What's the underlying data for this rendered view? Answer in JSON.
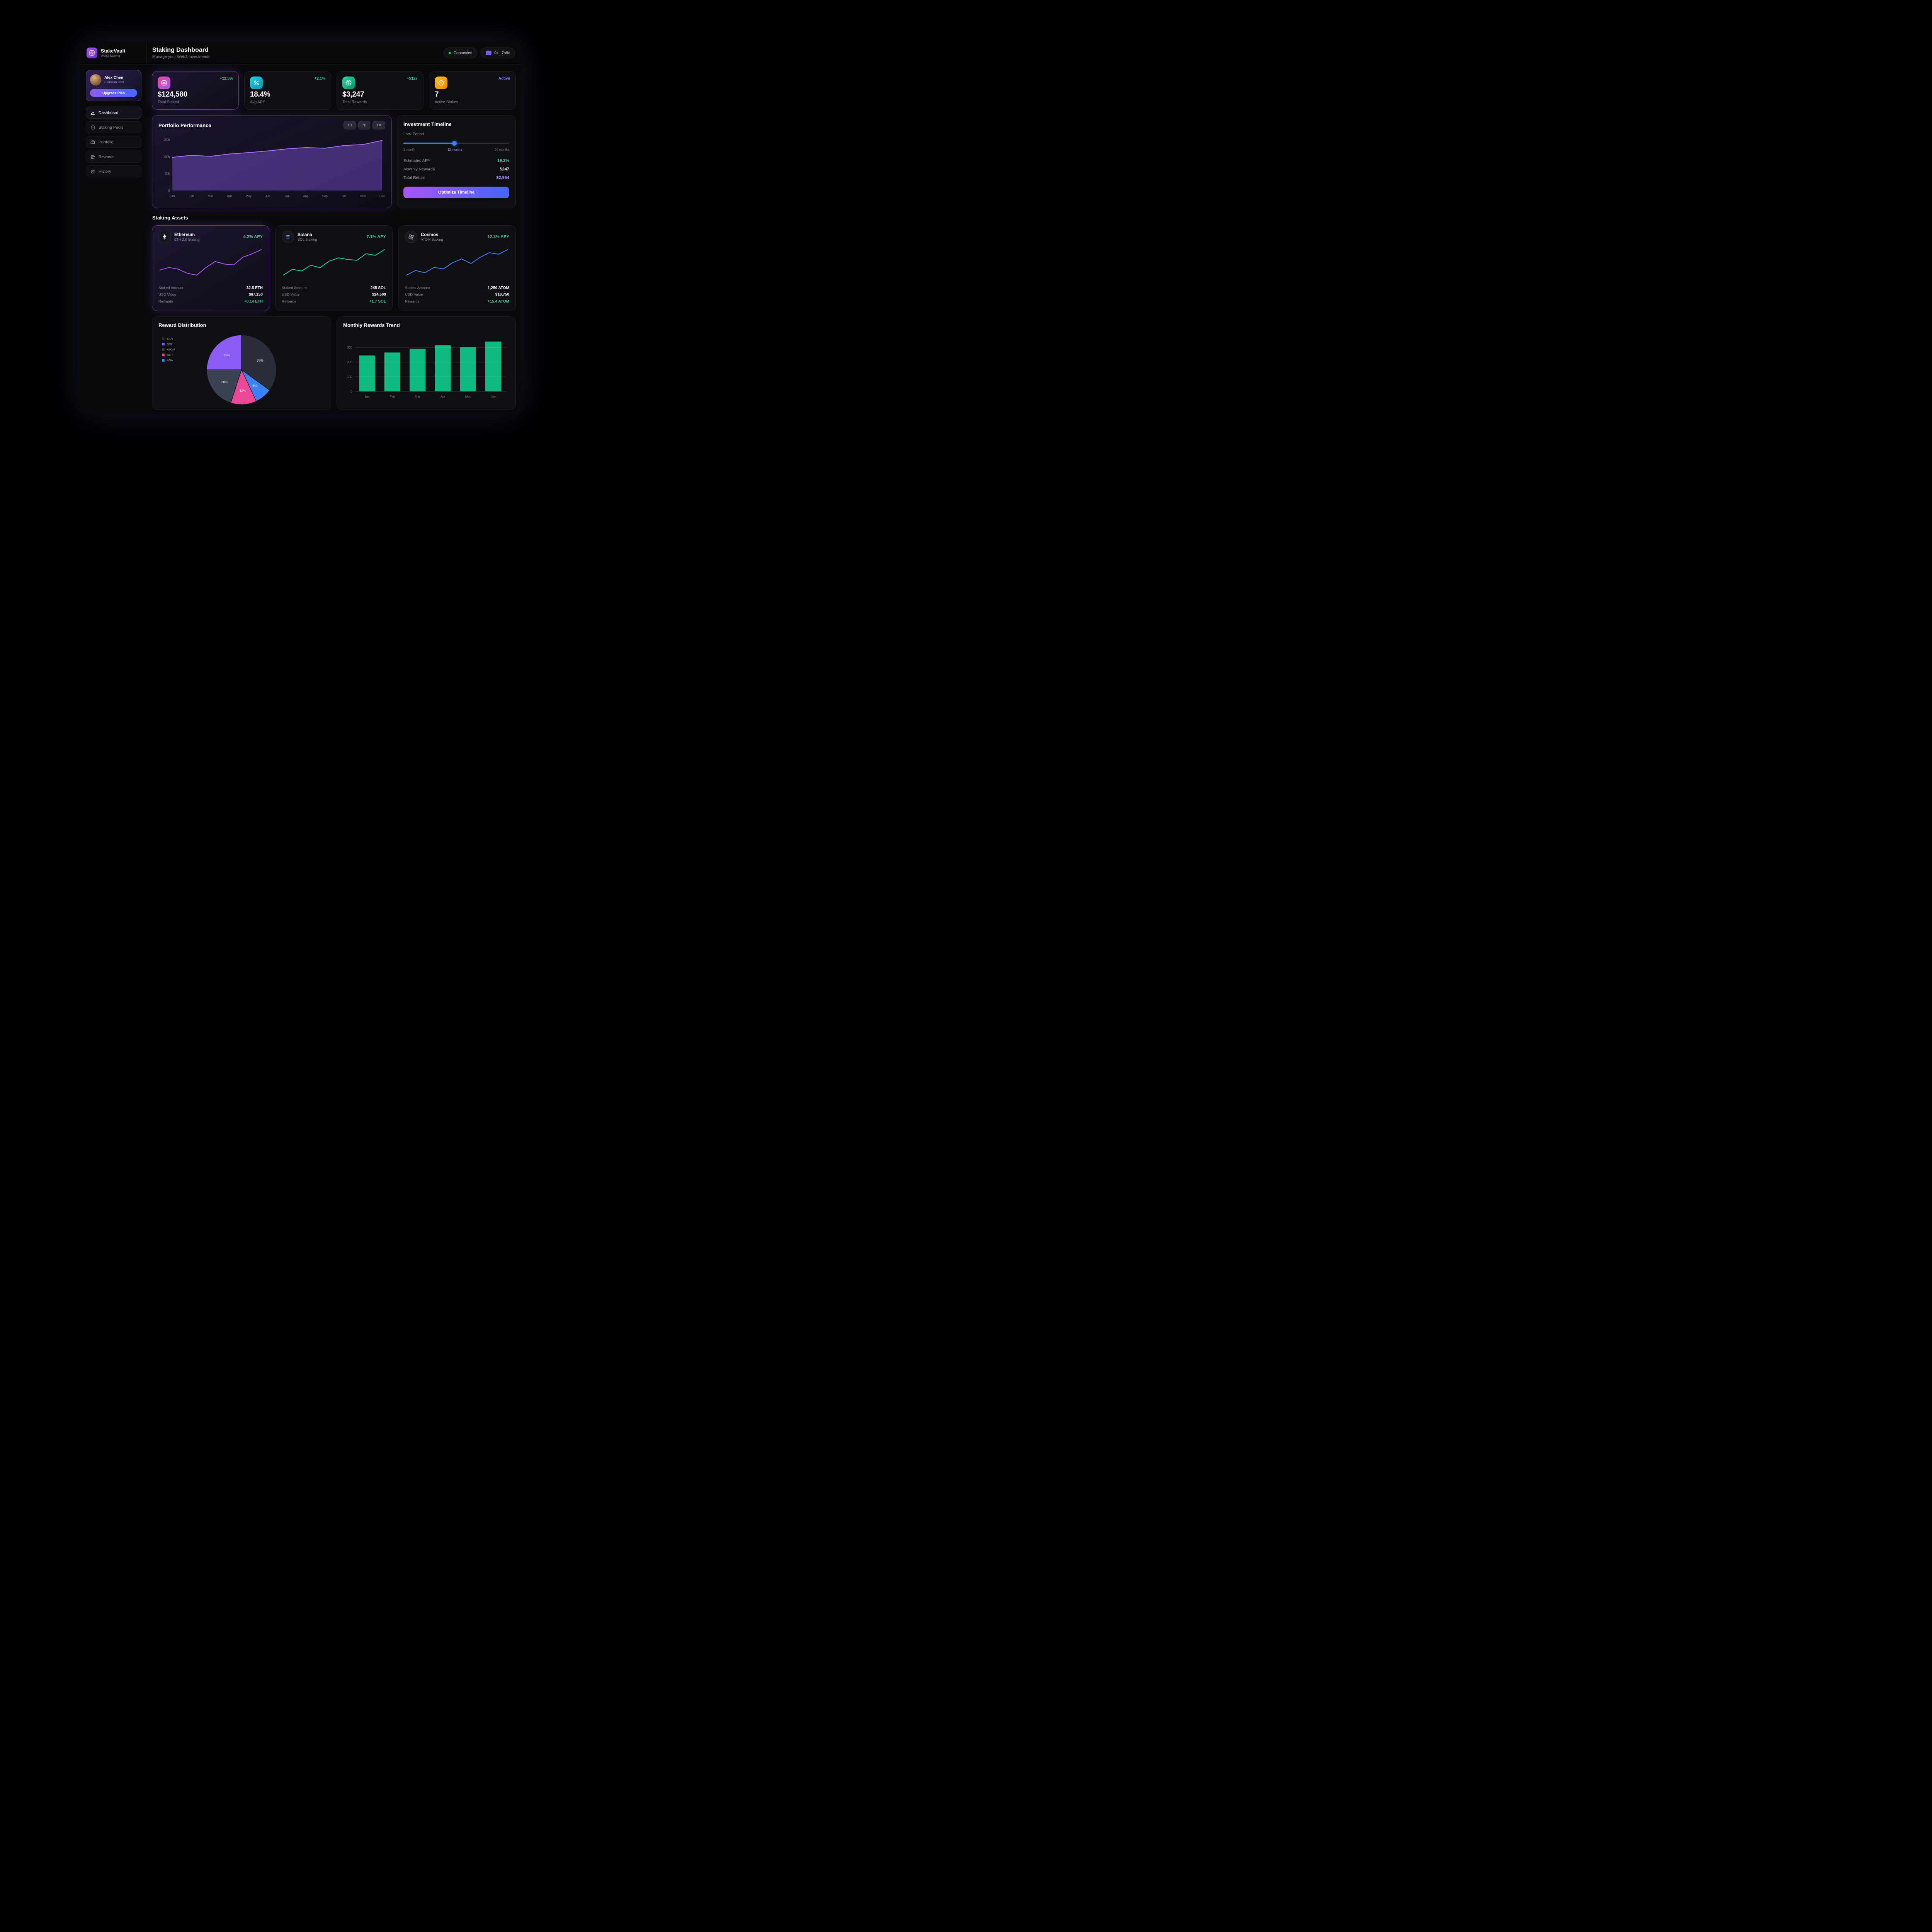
{
  "app": {
    "name": "StakeVault",
    "tagline": "Web3 Staking"
  },
  "header": {
    "title": "Staking Dashboard",
    "subtitle": "Manage your Web3 investments",
    "connection": "Connected",
    "wallet": "0x...7a9c"
  },
  "sidebar": {
    "user": {
      "name": "Alex Chen",
      "tier": "Premium User",
      "upgrade": "Upgrade Plan"
    },
    "items": [
      {
        "label": "Dashboard",
        "active": true
      },
      {
        "label": "Staking Pools",
        "active": false
      },
      {
        "label": "Portfolio",
        "active": false
      },
      {
        "label": "Rewards",
        "active": false
      },
      {
        "label": "History",
        "active": false
      }
    ]
  },
  "stats": [
    {
      "label": "Total Staked",
      "value": "$124,580",
      "badge": "+12.5%",
      "icon": "coins-icon",
      "accent": "#ec4899",
      "highlight": true
    },
    {
      "label": "Avg APY",
      "value": "18.4%",
      "badge": "+2.1%",
      "icon": "percent-icon",
      "accent": "#22d3ee",
      "highlight": false
    },
    {
      "label": "Total Rewards",
      "value": "$3,247",
      "badge": "+$127",
      "icon": "gift-icon",
      "accent": "#34d399",
      "highlight": false
    },
    {
      "label": "Active Stakes",
      "value": "7",
      "badge": "Active",
      "icon": "clock-icon",
      "accent": "#fbbf24",
      "highlight": false
    }
  ],
  "portfolio": {
    "title": "Portfolio Performance",
    "ranges": [
      {
        "label": "1D"
      },
      {
        "label": "7D"
      },
      {
        "label": "1M"
      }
    ]
  },
  "timeline": {
    "title": "Investment Timeline",
    "lock_label": "Lock Period",
    "min": "1 month",
    "current": "12 months",
    "max": "24 months",
    "rows": [
      {
        "label": "Estimated APY",
        "value": "19.2%"
      },
      {
        "label": "Monthly Rewards",
        "value": "$247"
      },
      {
        "label": "Total Return",
        "value": "$2,964"
      }
    ],
    "button": "Optimize Timeline"
  },
  "assets": {
    "title": "Staking Assets",
    "cards": [
      {
        "name": "Ethereum",
        "sub": "ETH 2.0 Staking",
        "apy": "4.2% APY",
        "highlight": true,
        "rows": [
          {
            "label": "Staked Amount",
            "value": "32.5 ETH"
          },
          {
            "label": "USD Value",
            "value": "$67,250"
          },
          {
            "label": "Rewards",
            "value": "+0.14 ETH"
          }
        ]
      },
      {
        "name": "Solana",
        "sub": "SOL Staking",
        "apy": "7.1% APY",
        "highlight": false,
        "rows": [
          {
            "label": "Staked Amount",
            "value": "245 SOL"
          },
          {
            "label": "USD Value",
            "value": "$24,500"
          },
          {
            "label": "Rewards",
            "value": "+1.7 SOL"
          }
        ]
      },
      {
        "name": "Cosmos",
        "sub": "ATOM Staking",
        "apy": "12.3% APY",
        "highlight": false,
        "rows": [
          {
            "label": "Staked Amount",
            "value": "1,250 ATOM"
          },
          {
            "label": "USD Value",
            "value": "$18,750"
          },
          {
            "label": "Rewards",
            "value": "+15.4 ATOM"
          }
        ]
      }
    ]
  },
  "reward_distribution": {
    "title": "Reward Distribution"
  },
  "monthly_trend": {
    "title": "Monthly Rewards Trend"
  },
  "colors": {
    "accent_purple": "#8b5cf6",
    "positive_green": "#34d399",
    "bar_green": "#10b981",
    "blue": "#3b82f6",
    "pink": "#ec4899"
  },
  "chart_data": [
    {
      "name": "portfolio_performance",
      "type": "area",
      "title": "Portfolio Performance",
      "x": [
        "Jan",
        "Feb",
        "Mar",
        "Apr",
        "May",
        "Jun",
        "Jul",
        "Aug",
        "Sep",
        "Oct",
        "Nov",
        "Dec"
      ],
      "values": [
        98000,
        104000,
        101000,
        108000,
        112000,
        117000,
        123000,
        127000,
        125000,
        133000,
        136000,
        148000
      ],
      "ylim": [
        0,
        160000
      ],
      "yticks": [
        0,
        50000,
        100000,
        150000
      ],
      "color": "#b16cfa",
      "fill": "rgba(139,92,246,0.40)"
    },
    {
      "name": "eth_spark",
      "type": "line",
      "title": "Ethereum staking trend",
      "values": [
        30,
        33,
        31,
        26,
        24,
        33,
        40,
        37,
        36,
        45,
        49,
        54
      ],
      "color": "#a855f7"
    },
    {
      "name": "sol_spark",
      "type": "line",
      "title": "Solana staking trend",
      "values": [
        15,
        22,
        20,
        27,
        24,
        32,
        36,
        34,
        33,
        41,
        39,
        46
      ],
      "color": "#10d39a"
    },
    {
      "name": "atom_spark",
      "type": "line",
      "title": "Cosmos staking trend",
      "values": [
        12,
        18,
        15,
        22,
        20,
        28,
        33,
        27,
        35,
        41,
        39,
        45
      ],
      "color": "#3b82f6"
    },
    {
      "name": "reward_distribution",
      "type": "pie",
      "title": "Reward Distribution",
      "legend": [
        "ETH",
        "SOL",
        "ATOM",
        "DOT",
        "ADA"
      ],
      "legend_colors": {
        "ETH": "#2a2e38",
        "SOL": "#8b5cf6",
        "ATOM": "#3a4150",
        "DOT": "#ec4899",
        "ADA": "#3b82f6"
      },
      "slices": [
        {
          "label": "ETH",
          "value": 35,
          "color": "#2a2e38"
        },
        {
          "label": "ADA",
          "value": 8,
          "color": "#3b82f6"
        },
        {
          "label": "DOT",
          "value": 12,
          "color": "#ec4899"
        },
        {
          "label": "ATOM",
          "value": 20,
          "color": "#3a4150"
        },
        {
          "label": "SOL",
          "value": 25,
          "color": "#8b5cf6"
        }
      ]
    },
    {
      "name": "monthly_rewards",
      "type": "bar",
      "title": "Monthly Rewards Trend",
      "categories": [
        "Jan",
        "Feb",
        "Mar",
        "Apr",
        "May",
        "Jun"
      ],
      "values": [
        245,
        265,
        290,
        315,
        300,
        340
      ],
      "yticks": [
        0,
        100,
        200,
        300
      ],
      "ylim": [
        0,
        350
      ],
      "color": "#10b981"
    }
  ]
}
